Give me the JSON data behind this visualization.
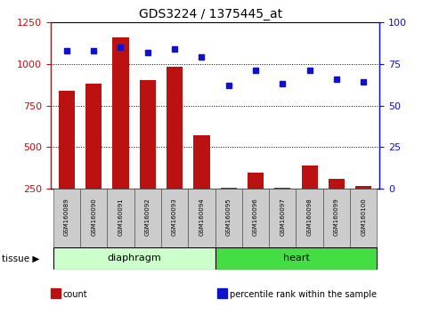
{
  "title": "GDS3224 / 1375445_at",
  "samples": [
    "GSM160089",
    "GSM160090",
    "GSM160091",
    "GSM160092",
    "GSM160093",
    "GSM160094",
    "GSM160095",
    "GSM160096",
    "GSM160097",
    "GSM160098",
    "GSM160099",
    "GSM160100"
  ],
  "count": [
    840,
    880,
    1160,
    900,
    980,
    570,
    255,
    350,
    258,
    390,
    310,
    270
  ],
  "percentile": [
    83,
    83,
    85,
    82,
    84,
    79,
    62,
    71,
    63,
    71,
    66,
    64
  ],
  "tissues": [
    {
      "label": "diaphragm",
      "start": 0,
      "end": 6,
      "color": "#CCFFCC"
    },
    {
      "label": "heart",
      "start": 6,
      "end": 12,
      "color": "#44DD44"
    }
  ],
  "ylim_left": [
    250,
    1250
  ],
  "ylim_right": [
    0,
    100
  ],
  "yticks_left": [
    250,
    500,
    750,
    1000,
    1250
  ],
  "yticks_right": [
    0,
    25,
    50,
    75,
    100
  ],
  "bar_color": "#BB1111",
  "dot_color": "#1111CC",
  "legend_items": [
    {
      "label": "count",
      "color": "#BB1111"
    },
    {
      "label": "percentile rank within the sample",
      "color": "#1111CC"
    }
  ],
  "title_fontsize": 10,
  "tick_fontsize": 8,
  "sample_fontsize": 5,
  "tissue_fontsize": 8,
  "legend_fontsize": 7
}
